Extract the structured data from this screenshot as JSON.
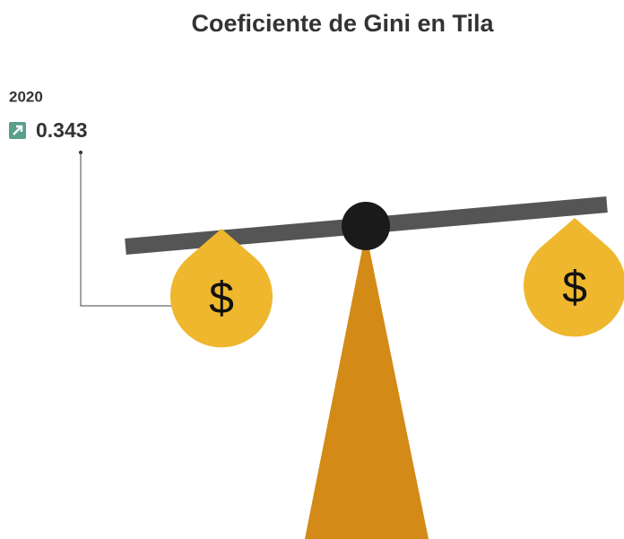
{
  "header": {
    "title": "Coeficiente de Gini en Tila"
  },
  "indicator": {
    "year": "2020",
    "value": 0.343
  },
  "scale": {
    "weights": [
      "$",
      "$"
    ]
  }
}
